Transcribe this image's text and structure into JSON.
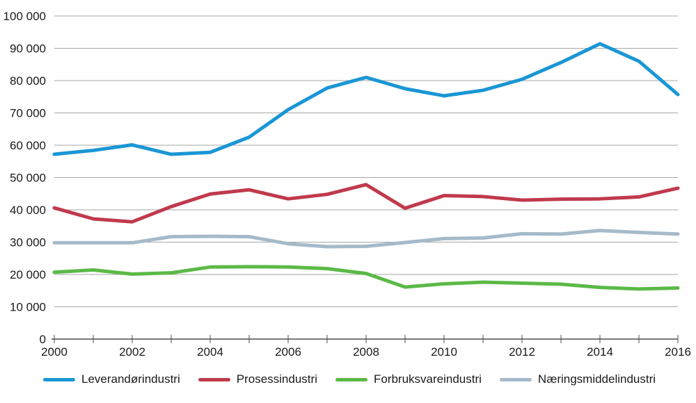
{
  "chart_data": {
    "type": "line",
    "title": "",
    "xlabel": "",
    "ylabel": "",
    "x": [
      2000,
      2001,
      2002,
      2003,
      2004,
      2005,
      2006,
      2007,
      2008,
      2009,
      2010,
      2011,
      2012,
      2013,
      2014,
      2015,
      2016
    ],
    "x_labeled_ticks": [
      2000,
      2002,
      2004,
      2006,
      2008,
      2010,
      2012,
      2014,
      2016
    ],
    "x_tick_labels": [
      "2000",
      "2002",
      "2004",
      "2006",
      "2008",
      "2010",
      "2012",
      "2014",
      "2016"
    ],
    "y_axis": {
      "min": 0,
      "max": 100000,
      "step": 10000,
      "tick_labels": [
        "0",
        "10 000",
        "20 000",
        "30 000",
        "40 000",
        "50 000",
        "60 000",
        "70 000",
        "80 000",
        "90 000",
        "100 000"
      ]
    },
    "grid": true,
    "legend_position": "bottom",
    "series": [
      {
        "name": "Leverandørindustri",
        "color": "#1a96d5",
        "values": [
          57200,
          58400,
          60100,
          57200,
          57800,
          62500,
          71000,
          77700,
          81000,
          77500,
          75300,
          77000,
          80400,
          85600,
          91400,
          86000,
          75700
        ]
      },
      {
        "name": "Prosessindustri",
        "color": "#c03a4c",
        "values": [
          40600,
          37200,
          36300,
          41000,
          44900,
          46200,
          43400,
          44800,
          47800,
          40500,
          44400,
          44100,
          43000,
          43300,
          43400,
          44000,
          46700
        ]
      },
      {
        "name": "Forbruksvareindustri",
        "color": "#5bb947",
        "values": [
          20700,
          21400,
          20100,
          20500,
          22300,
          22400,
          22300,
          21800,
          20300,
          16100,
          17100,
          17600,
          17300,
          17000,
          16000,
          15500,
          15800
        ]
      },
      {
        "name": "Næringsmiddelindustri",
        "color": "#a5bac9",
        "values": [
          29800,
          29800,
          29800,
          31700,
          31800,
          31700,
          29500,
          28600,
          28700,
          29900,
          31100,
          31300,
          32600,
          32500,
          33600,
          33000,
          32500
        ]
      }
    ]
  }
}
